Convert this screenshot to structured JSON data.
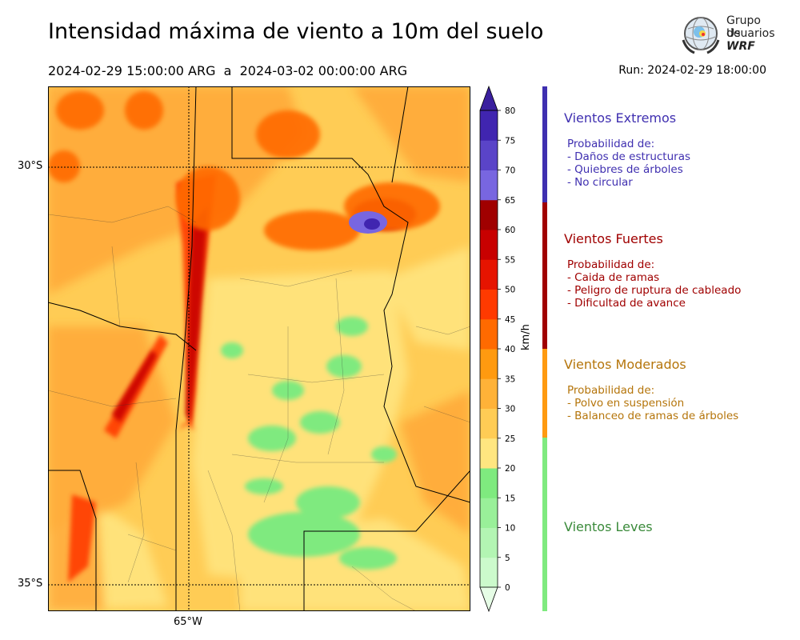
{
  "title": "Intensidad máxima de viento a 10m del suelo",
  "period": "2024-02-29 15:00:00 ARG  a  2024-03-02 00:00:00 ARG",
  "run": "Run: 2024-02-29 18:00:00",
  "logo": {
    "line1": "Grupo de",
    "line2": "Usuarios",
    "line3": "WRF",
    "icon": "globe-emblem-icon"
  },
  "map": {
    "lat_labels": [
      "30°S",
      "35°S"
    ],
    "lon_labels": [
      "65°W"
    ]
  },
  "colorbar": {
    "unit": "km/h",
    "ticks": [
      "0",
      "5",
      "10",
      "15",
      "20",
      "25",
      "30",
      "35",
      "40",
      "45",
      "50",
      "55",
      "60",
      "65",
      "70",
      "75",
      "80"
    ],
    "colors": [
      "#e6fde6",
      "#ccfacc",
      "#b3f5b3",
      "#99f099",
      "#7fea7f",
      "#ffe680",
      "#ffcc55",
      "#ffb238",
      "#ff9a10",
      "#ff6a00",
      "#ff3a00",
      "#e61400",
      "#c80000",
      "#a00000",
      "#7866e0",
      "#5a44c8",
      "#4025b0",
      "#3a1f9e"
    ]
  },
  "categories": [
    {
      "name": "Vientos Extremos",
      "color": "#3f2fb0",
      "intro": "Probabilidad de:",
      "items": [
        "- Daños de estructuras",
        "- Quiebres de árboles",
        "- No circular"
      ]
    },
    {
      "name": "Vientos Fuertes",
      "color": "#a00000",
      "intro": "Probabilidad de:",
      "items": [
        "- Caida de ramas",
        "- Peligro de ruptura de cableado",
        "- Dificultad de avance"
      ]
    },
    {
      "name": "Vientos Moderados",
      "color": "#b5750b",
      "intro": "Probabilidad de:",
      "items": [
        "- Polvo en suspensión",
        "- Balanceo de ramas de árboles"
      ]
    },
    {
      "name": "Vientos Leves",
      "color": "#3a8a3a",
      "intro": "",
      "items": []
    }
  ],
  "legend_bar_colors": [
    "#3f2fb0",
    "#a00000",
    "#ff9a10",
    "#7fea7f"
  ]
}
